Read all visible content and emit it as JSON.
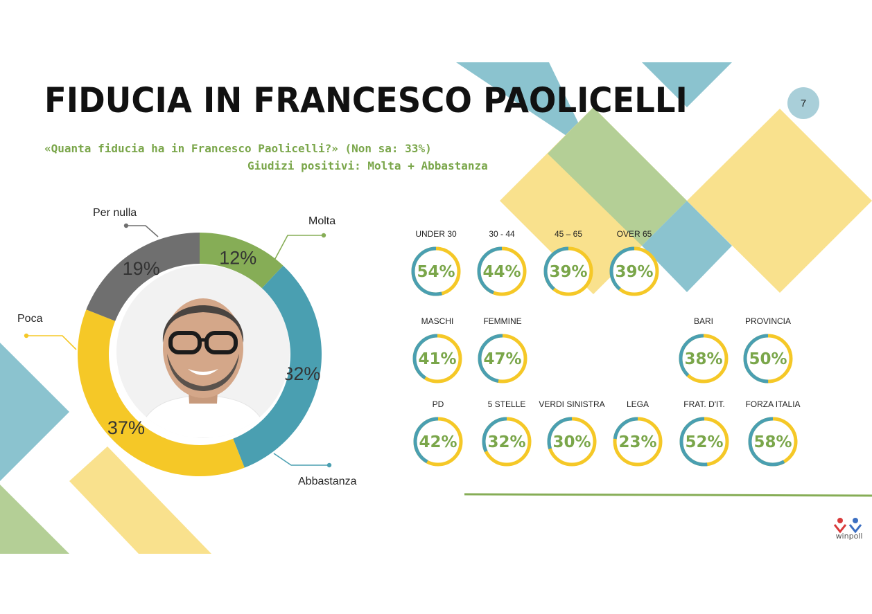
{
  "page": {
    "title": "FIDUCIA IN FRANCESCO PAOLICELLI",
    "page_number": "7",
    "subtitle_line1": "«Quanta fiducia ha in Francesco Paolicelli?» (Non sa: 33%)",
    "subtitle_line2": "Giudizi positivi: Molta + Abbastanza",
    "logo_text": "winpoll"
  },
  "colors": {
    "green": "#86ad56",
    "teal": "#4a9fb1",
    "yellow": "#f5c827",
    "gray": "#6f6f6f",
    "pct_text": "#7aa64a",
    "deco_teal": "#8bc3cf",
    "deco_green": "#b4cf96",
    "deco_yellow": "#f9e18d"
  },
  "chart_data": [
    {
      "type": "pie",
      "variant": "donut",
      "slices": [
        {
          "name": "Molta",
          "value": 12,
          "label": "12%",
          "color": "#86ad56"
        },
        {
          "name": "Abbastanza",
          "value": 32,
          "label": "32%",
          "color": "#4a9fb1"
        },
        {
          "name": "Poca",
          "value": 37,
          "label": "37%",
          "color": "#f5c827"
        },
        {
          "name": "Per nulla",
          "value": 19,
          "label": "19%",
          "color": "#6f6f6f"
        }
      ]
    },
    {
      "type": "pie",
      "variant": "progress-rings",
      "groups": [
        {
          "categories": [
            "UNDER 30",
            "30 - 44",
            "45 – 65",
            "OVER 65"
          ],
          "values": [
            54,
            44,
            39,
            39
          ],
          "labels": [
            "54%",
            "44%",
            "39%",
            "39%"
          ]
        },
        {
          "categories": [
            "MASCHI",
            "FEMMINE"
          ],
          "values": [
            41,
            47
          ],
          "labels": [
            "41%",
            "47%"
          ]
        },
        {
          "categories": [
            "BARI",
            "PROVINCIA"
          ],
          "values": [
            38,
            50
          ],
          "labels": [
            "38%",
            "50%"
          ]
        },
        {
          "categories": [
            "PD",
            "5 STELLE",
            "VERDI SINISTRA",
            "LEGA",
            "FRAT. D'IT.",
            "FORZA ITALIA"
          ],
          "values": [
            42,
            32,
            30,
            23,
            52,
            58
          ],
          "labels": [
            "42%",
            "32%",
            "30%",
            "23%",
            "52%",
            "58%"
          ]
        }
      ]
    }
  ]
}
